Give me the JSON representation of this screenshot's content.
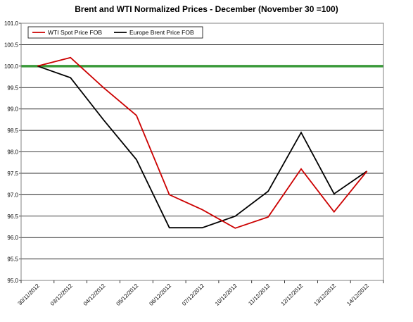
{
  "chart_data": {
    "type": "line",
    "title": "Brent and WTI Normalized Prices  -  December (November 30 =100)",
    "xlabel": "",
    "ylabel": "",
    "categories": [
      "30/11/2012",
      "03/12/2012",
      "04/12/2012",
      "05/12/2012",
      "06/12/2012",
      "07/12/2012",
      "10/12/2012",
      "11/12/2012",
      "12/12/2012",
      "13/12/2012",
      "14/12/2012"
    ],
    "ylim": [
      95.0,
      101.0
    ],
    "yticks": [
      "95.0",
      "95.5",
      "96.0",
      "96.5",
      "97.0",
      "97.5",
      "98.0",
      "98.5",
      "99.0",
      "99.5",
      "100.0",
      "100.5",
      "101.0"
    ],
    "grid": true,
    "legend_position": "top-left",
    "reference_line": {
      "value": 100.0,
      "color": "#3a9a3a"
    },
    "series": [
      {
        "name": "WTI Spot Price FOB",
        "color": "#cc0000",
        "values": [
          100.0,
          100.2,
          99.5,
          98.85,
          97.0,
          96.65,
          96.22,
          96.48,
          97.6,
          96.6,
          97.55
        ]
      },
      {
        "name": "Europe Brent Price FOB",
        "color": "#000000",
        "values": [
          100.0,
          99.73,
          98.75,
          97.82,
          96.23,
          96.23,
          96.5,
          97.08,
          98.45,
          97.02,
          97.55
        ]
      }
    ]
  }
}
